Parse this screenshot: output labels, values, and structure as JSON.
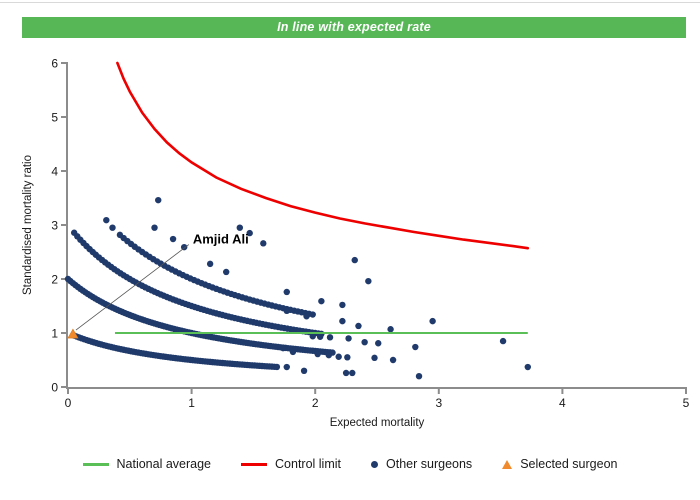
{
  "banner": {
    "text": "In line with expected rate",
    "bg_color": "#57b656"
  },
  "chart_data": {
    "type": "scatter",
    "title": "In line with expected rate",
    "xlabel": "Expected mortality",
    "ylabel": "Standardised mortality ratio",
    "xlim": [
      0,
      5
    ],
    "ylim": [
      0,
      6
    ],
    "xticks": [
      0,
      1,
      2,
      3,
      4,
      5
    ],
    "yticks": [
      0,
      1,
      2,
      3,
      4,
      5,
      6
    ],
    "grid": false,
    "axis_color": "#8c8c8c",
    "tick_label_color": "#1a1a1a",
    "series": {
      "national_average": {
        "label": "National average",
        "color": "#5abf57",
        "y": 1.0,
        "x_start": 0.38,
        "x_end": 3.72
      },
      "control_limit": {
        "label": "Control limit",
        "color": "#ee0000",
        "points": [
          [
            0.4,
            6.0
          ],
          [
            0.45,
            5.71
          ],
          [
            0.5,
            5.47
          ],
          [
            0.6,
            5.08
          ],
          [
            0.7,
            4.78
          ],
          [
            0.8,
            4.53
          ],
          [
            0.9,
            4.33
          ],
          [
            1.0,
            4.16
          ],
          [
            1.2,
            3.88
          ],
          [
            1.4,
            3.67
          ],
          [
            1.6,
            3.5
          ],
          [
            1.8,
            3.35
          ],
          [
            2.0,
            3.23
          ],
          [
            2.2,
            3.12
          ],
          [
            2.4,
            3.03
          ],
          [
            2.6,
            2.95
          ],
          [
            2.8,
            2.87
          ],
          [
            3.0,
            2.8
          ],
          [
            3.2,
            2.73
          ],
          [
            3.4,
            2.67
          ],
          [
            3.6,
            2.61
          ],
          [
            3.72,
            2.57
          ]
        ]
      },
      "other_surgeons": {
        "label": "Other surgeons",
        "color": "#1f3a6b",
        "band_formula": "smr = deaths / (1 + expected)",
        "bands": [
          {
            "deaths": 1,
            "x_start": 0.05,
            "x_end": 1.7,
            "step": 0.02
          },
          {
            "deaths": 2,
            "x_start": 0.0,
            "x_end": 2.15,
            "step": 0.02
          },
          {
            "deaths": 3,
            "x_start": 0.05,
            "x_end": 2.05,
            "step": 0.025
          },
          {
            "deaths": 4,
            "x_start": 0.42,
            "x_end": 2.0,
            "step": 0.03
          }
        ],
        "points": [
          [
            0.31,
            3.09
          ],
          [
            0.36,
            2.95
          ],
          [
            0.73,
            3.46
          ],
          [
            0.7,
            2.95
          ],
          [
            0.85,
            2.74
          ],
          [
            0.94,
            2.59
          ],
          [
            1.39,
            2.95
          ],
          [
            1.47,
            2.85
          ],
          [
            1.58,
            2.66
          ],
          [
            1.15,
            2.28
          ],
          [
            1.28,
            2.13
          ],
          [
            2.32,
            2.35
          ],
          [
            2.43,
            1.96
          ],
          [
            1.77,
            1.76
          ],
          [
            2.05,
            1.59
          ],
          [
            2.22,
            1.52
          ],
          [
            1.77,
            1.41
          ],
          [
            1.93,
            1.31
          ],
          [
            2.22,
            1.22
          ],
          [
            2.35,
            1.13
          ],
          [
            2.61,
            1.07
          ],
          [
            2.95,
            1.22
          ],
          [
            1.98,
            0.94
          ],
          [
            2.04,
            0.93
          ],
          [
            2.12,
            0.92
          ],
          [
            2.27,
            0.9
          ],
          [
            2.4,
            0.83
          ],
          [
            2.51,
            0.81
          ],
          [
            2.81,
            0.74
          ],
          [
            3.52,
            0.85
          ],
          [
            1.74,
            0.72
          ],
          [
            1.82,
            0.65
          ],
          [
            2.02,
            0.61
          ],
          [
            2.11,
            0.59
          ],
          [
            2.19,
            0.56
          ],
          [
            2.26,
            0.55
          ],
          [
            2.48,
            0.54
          ],
          [
            2.63,
            0.5
          ],
          [
            1.77,
            0.37
          ],
          [
            1.91,
            0.3
          ],
          [
            2.25,
            0.26
          ],
          [
            2.3,
            0.26
          ],
          [
            2.84,
            0.2
          ],
          [
            3.72,
            0.37
          ]
        ]
      },
      "selected_surgeon": {
        "label": "Selected surgeon",
        "color": "#f08a2d",
        "name": "Amjid Ali",
        "x": 0.04,
        "y": 0.98
      }
    },
    "annotation": {
      "text": "Amjid Ali",
      "x": 1.01,
      "y": 2.73
    },
    "legend_position": "bottom"
  },
  "legend": {
    "items": [
      {
        "label": "National average"
      },
      {
        "label": "Control limit"
      },
      {
        "label": "Other surgeons"
      },
      {
        "label": "Selected surgeon"
      }
    ]
  }
}
